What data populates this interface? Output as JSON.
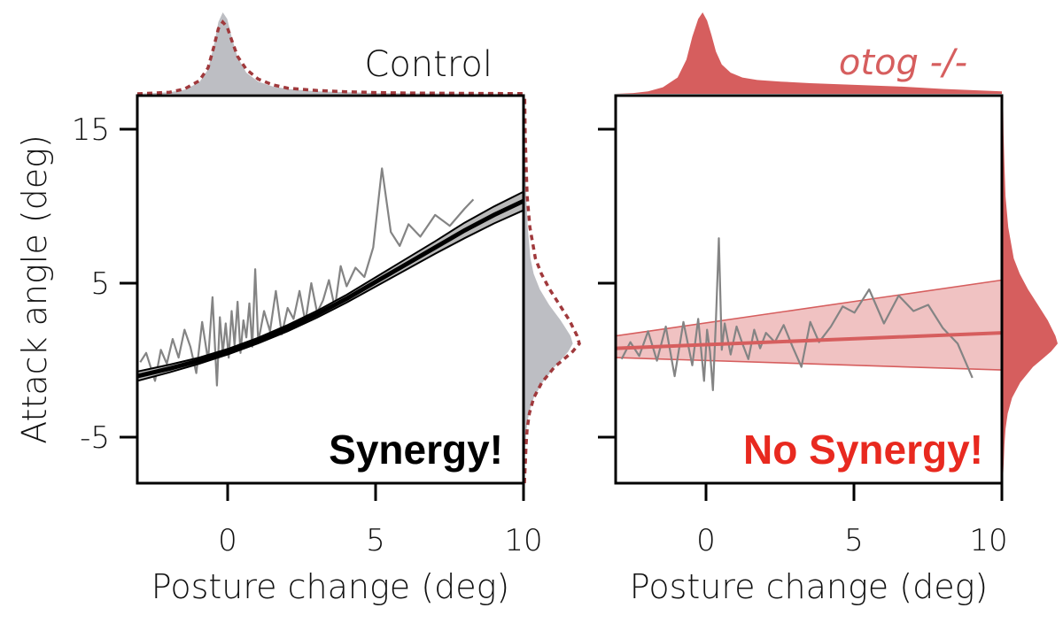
{
  "colors": {
    "control_fill": "#bdbec3",
    "control_dashed": "#a0393c",
    "mutant": "#d65e5e",
    "mutant_band": "#f0c2c2",
    "raw_trace": "#848484",
    "fit": "#000000",
    "synergy": "#000000",
    "no_synergy": "#e8291f"
  },
  "chart_data": [
    {
      "type": "line",
      "panel": "control",
      "title": "Control",
      "xlabel": "Posture change (deg)",
      "ylabel": "Attack angle (deg)",
      "xlim": [
        -3.1,
        10
      ],
      "ylim": [
        -7.5,
        17.5
      ],
      "xticks": [
        0,
        5,
        10
      ],
      "xtick_labels": [
        "0",
        "5",
        "10"
      ],
      "yticks": [
        -5,
        5,
        15
      ],
      "ytick_labels": [
        "-5",
        "5",
        "15"
      ],
      "annotation": "Synergy!",
      "raw_trace": {
        "x": [
          -3.0,
          -2.8,
          -2.5,
          -2.3,
          -2.1,
          -1.9,
          -1.7,
          -1.5,
          -1.3,
          -1.1,
          -0.9,
          -0.7,
          -0.55,
          -0.4,
          -0.3,
          -0.2,
          -0.1,
          0.0,
          0.1,
          0.2,
          0.3,
          0.4,
          0.5,
          0.6,
          0.7,
          0.8,
          0.9,
          1.0,
          1.2,
          1.4,
          1.6,
          1.8,
          2.0,
          2.2,
          2.4,
          2.6,
          2.8,
          3.0,
          3.2,
          3.4,
          3.6,
          3.8,
          4.0,
          4.3,
          4.6,
          4.9,
          5.2,
          5.5,
          5.8,
          6.1,
          6.5,
          7.0,
          7.5,
          8.0,
          8.3
        ],
        "y": [
          0.3,
          0.9,
          -0.9,
          1.1,
          0.2,
          1.8,
          0.6,
          2.4,
          1.3,
          -0.4,
          2.9,
          0.4,
          4.5,
          -1.2,
          3.2,
          0.9,
          2.8,
          0.6,
          3.6,
          1.4,
          4.2,
          0.9,
          3.0,
          1.9,
          4.1,
          1.3,
          6.3,
          1.6,
          3.6,
          2.3,
          4.9,
          2.1,
          3.8,
          3.1,
          4.9,
          2.9,
          5.4,
          3.5,
          4.3,
          5.6,
          3.8,
          6.5,
          5.2,
          6.4,
          5.8,
          7.7,
          12.8,
          8.7,
          7.8,
          9.2,
          8.4,
          9.8,
          9.1,
          10.2,
          10.8
        ]
      },
      "fit": {
        "x": [
          -3.1,
          -2,
          -1,
          0,
          1,
          2,
          3,
          4,
          5,
          6,
          7,
          8,
          9,
          10
        ],
        "y": [
          -0.6,
          -0.1,
          0.4,
          1.0,
          1.7,
          2.5,
          3.4,
          4.4,
          5.5,
          6.6,
          7.7,
          8.8,
          9.8,
          10.7
        ],
        "band_halfwidth": [
          0.3,
          0.25,
          0.2,
          0.18,
          0.18,
          0.2,
          0.22,
          0.25,
          0.3,
          0.35,
          0.4,
          0.5,
          0.55,
          0.6
        ]
      },
      "marginal_x": {
        "x": [
          -3.1,
          -2.5,
          -2.0,
          -1.5,
          -1.0,
          -0.7,
          -0.5,
          -0.35,
          -0.2,
          -0.05,
          0.1,
          0.3,
          0.6,
          1.0,
          1.5,
          2.0,
          3.0,
          4.0,
          5.0,
          6.0,
          8.0,
          10.0
        ],
        "density": [
          0.0,
          0.01,
          0.02,
          0.05,
          0.14,
          0.3,
          0.6,
          0.88,
          1.0,
          0.92,
          0.7,
          0.45,
          0.26,
          0.15,
          0.09,
          0.06,
          0.03,
          0.02,
          0.01,
          0.006,
          0.003,
          0.0
        ],
        "density_mutant_overlay": [
          0.0,
          0.01,
          0.02,
          0.06,
          0.16,
          0.32,
          0.58,
          0.8,
          0.88,
          0.82,
          0.66,
          0.46,
          0.3,
          0.18,
          0.11,
          0.07,
          0.04,
          0.025,
          0.015,
          0.01,
          0.005,
          0.002
        ]
      },
      "marginal_y": {
        "y": [
          -7.5,
          -6.0,
          -5.0,
          -4.0,
          -3.0,
          -2.0,
          -1.0,
          0.0,
          0.5,
          1.0,
          1.5,
          2.0,
          3.0,
          4.0,
          5.0,
          6.0,
          7.0,
          9.0,
          11.0,
          13.0,
          15.0,
          17.5
        ],
        "density": [
          0.0,
          0.01,
          0.02,
          0.04,
          0.08,
          0.17,
          0.33,
          0.55,
          0.68,
          0.8,
          0.88,
          0.84,
          0.66,
          0.45,
          0.28,
          0.17,
          0.11,
          0.06,
          0.035,
          0.02,
          0.01,
          0.0
        ],
        "density_mutant_overlay": [
          0.0,
          0.02,
          0.03,
          0.05,
          0.09,
          0.17,
          0.32,
          0.55,
          0.72,
          0.88,
          1.0,
          0.96,
          0.82,
          0.64,
          0.46,
          0.31,
          0.2,
          0.1,
          0.05,
          0.03,
          0.015,
          0.005
        ]
      }
    },
    {
      "type": "line",
      "panel": "mutant",
      "title": "otog -/-",
      "xlabel": "Posture change (deg)",
      "ylabel": "",
      "xlim": [
        -3.1,
        10
      ],
      "ylim": [
        -7.5,
        17.5
      ],
      "xticks": [
        0,
        5,
        10
      ],
      "xtick_labels": [
        "0",
        "5",
        "10"
      ],
      "yticks": [
        -5,
        5,
        15
      ],
      "annotation": "No Synergy!",
      "raw_trace": {
        "x": [
          -2.9,
          -2.6,
          -2.3,
          -2.0,
          -1.7,
          -1.4,
          -1.1,
          -0.8,
          -0.5,
          -0.3,
          -0.1,
          0.0,
          0.1,
          0.2,
          0.3,
          0.4,
          0.5,
          0.6,
          0.8,
          1.0,
          1.2,
          1.4,
          1.6,
          1.8,
          2.0,
          2.3,
          2.6,
          2.9,
          3.2,
          3.5,
          3.8,
          4.2,
          4.6,
          5.0,
          5.5,
          6.0,
          6.5,
          7.0,
          7.5,
          8.0,
          8.5,
          9.0
        ],
        "y": [
          0.5,
          1.6,
          0.7,
          2.3,
          0.4,
          2.6,
          -0.6,
          2.9,
          0.1,
          3.1,
          -0.9,
          2.4,
          1.0,
          -1.5,
          3.0,
          8.3,
          1.1,
          2.8,
          0.8,
          2.6,
          1.5,
          0.5,
          2.4,
          1.2,
          2.2,
          1.6,
          2.7,
          1.3,
          0.0,
          2.9,
          1.6,
          2.6,
          3.9,
          3.5,
          5.0,
          2.8,
          4.6,
          3.6,
          4.0,
          2.5,
          1.5,
          -0.7
        ]
      },
      "fit": {
        "x": [
          -3.1,
          10
        ],
        "y": [
          1.2,
          2.2
        ],
        "band_lower": [
          0.6,
          -0.2
        ],
        "band_upper": [
          2.0,
          5.6
        ]
      },
      "marginal_x": {
        "x": [
          -3.1,
          -2.5,
          -2.0,
          -1.5,
          -1.0,
          -0.7,
          -0.5,
          -0.3,
          -0.15,
          0.0,
          0.15,
          0.3,
          0.5,
          0.8,
          1.2,
          1.7,
          2.5,
          3.5,
          5.0,
          6.5,
          8.0,
          10.0
        ],
        "density": [
          0.0,
          0.01,
          0.03,
          0.08,
          0.2,
          0.42,
          0.7,
          0.92,
          1.0,
          0.9,
          0.72,
          0.52,
          0.36,
          0.26,
          0.2,
          0.17,
          0.15,
          0.13,
          0.11,
          0.09,
          0.06,
          0.03
        ]
      },
      "marginal_y": {
        "y": [
          -7.5,
          -6.0,
          -5.0,
          -4.0,
          -3.0,
          -2.0,
          -1.0,
          0.0,
          0.5,
          1.0,
          1.5,
          2.0,
          3.0,
          4.0,
          5.0,
          6.0,
          7.0,
          9.0,
          11.0,
          13.0,
          15.0,
          17.5
        ],
        "density": [
          0.0,
          0.02,
          0.03,
          0.05,
          0.09,
          0.17,
          0.32,
          0.55,
          0.72,
          0.88,
          1.0,
          0.96,
          0.82,
          0.64,
          0.46,
          0.31,
          0.2,
          0.1,
          0.05,
          0.03,
          0.015,
          0.005
        ]
      }
    }
  ]
}
